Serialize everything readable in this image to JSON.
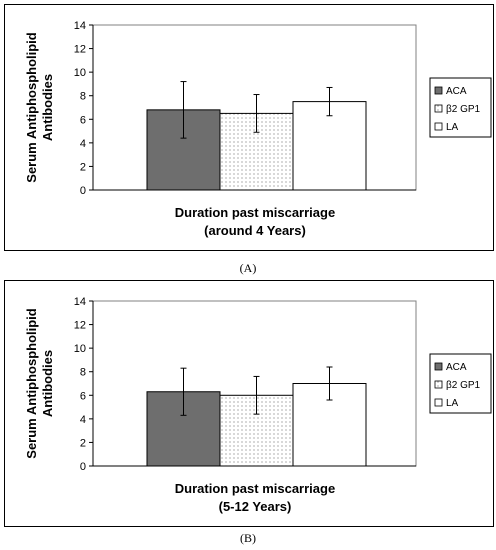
{
  "chart_data": [
    {
      "type": "bar",
      "panel_label": "(A)",
      "ylabel": "Serum Antiphospholipid Antibodies",
      "xlabel_lines": [
        "Duration past miscarriage",
        "(around 4 Years)"
      ],
      "ylim": [
        0,
        14
      ],
      "yticks": [
        0,
        2,
        4,
        6,
        8,
        10,
        12,
        14
      ],
      "legend_position": "right",
      "series": [
        {
          "name": "ACA",
          "value": 6.8,
          "error": 2.4,
          "fill": "#6e6e6e"
        },
        {
          "name": "β2 GP1",
          "value": 6.5,
          "error": 1.6,
          "fill": "dotted"
        },
        {
          "name": "LA",
          "value": 7.5,
          "error": 1.2,
          "fill": "#ffffff"
        }
      ]
    },
    {
      "type": "bar",
      "panel_label": "(B)",
      "ylabel": "Serum Antiphospholipid Antibodies",
      "xlabel_lines": [
        "Duration past miscarriage",
        "(5-12 Years)"
      ],
      "ylim": [
        0,
        14
      ],
      "yticks": [
        0,
        2,
        4,
        6,
        8,
        10,
        12,
        14
      ],
      "legend_position": "right",
      "series": [
        {
          "name": "ACA",
          "value": 6.3,
          "error": 2.0,
          "fill": "#6e6e6e"
        },
        {
          "name": "β2 GP1",
          "value": 6.0,
          "error": 1.6,
          "fill": "dotted"
        },
        {
          "name": "LA",
          "value": 7.0,
          "error": 1.4,
          "fill": "#ffffff"
        }
      ]
    }
  ]
}
